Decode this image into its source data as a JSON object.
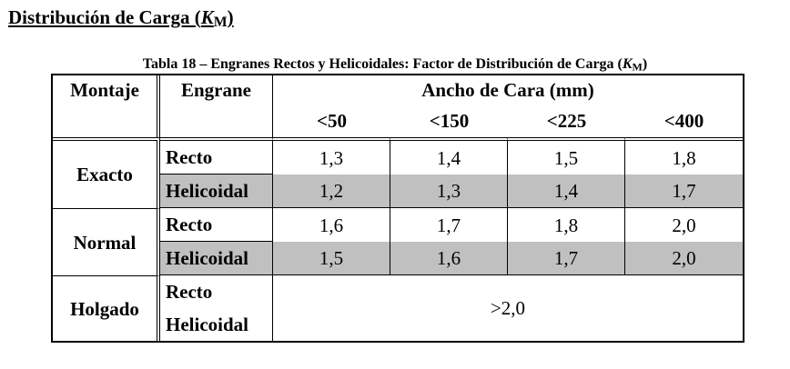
{
  "heading": {
    "prefix": "Distribución de Carga (",
    "symbol": "K",
    "sub": "M",
    "suffix": ")"
  },
  "caption": {
    "prefix": "Tabla 18 – Engranes Rectos y Helicoidales: Factor de Distribución de Carga (",
    "symbol": "K",
    "sub": "M",
    "suffix": ")"
  },
  "table": {
    "col_montaje": "Montaje",
    "col_engrane": "Engrane",
    "col_ancho": "Ancho de Cara (mm)",
    "widths": [
      "<50",
      "<150",
      "<225",
      "<400"
    ],
    "groups": [
      {
        "montaje": "Exacto",
        "rows": [
          {
            "engrane": "Recto",
            "values": [
              "1,3",
              "1,4",
              "1,5",
              "1,8"
            ]
          },
          {
            "engrane": "Helicoidal",
            "values": [
              "1,2",
              "1,3",
              "1,4",
              "1,7"
            ]
          }
        ]
      },
      {
        "montaje": "Normal",
        "rows": [
          {
            "engrane": "Recto",
            "values": [
              "1,6",
              "1,7",
              "1,8",
              "2,0"
            ]
          },
          {
            "engrane": "Helicoidal",
            "values": [
              "1,5",
              "1,6",
              "1,7",
              "2,0"
            ]
          }
        ]
      },
      {
        "montaje": "Holgado",
        "rows": [
          {
            "engrane": "Recto"
          },
          {
            "engrane": "Helicoidal"
          }
        ],
        "merged_value": ">2,0"
      }
    ]
  }
}
